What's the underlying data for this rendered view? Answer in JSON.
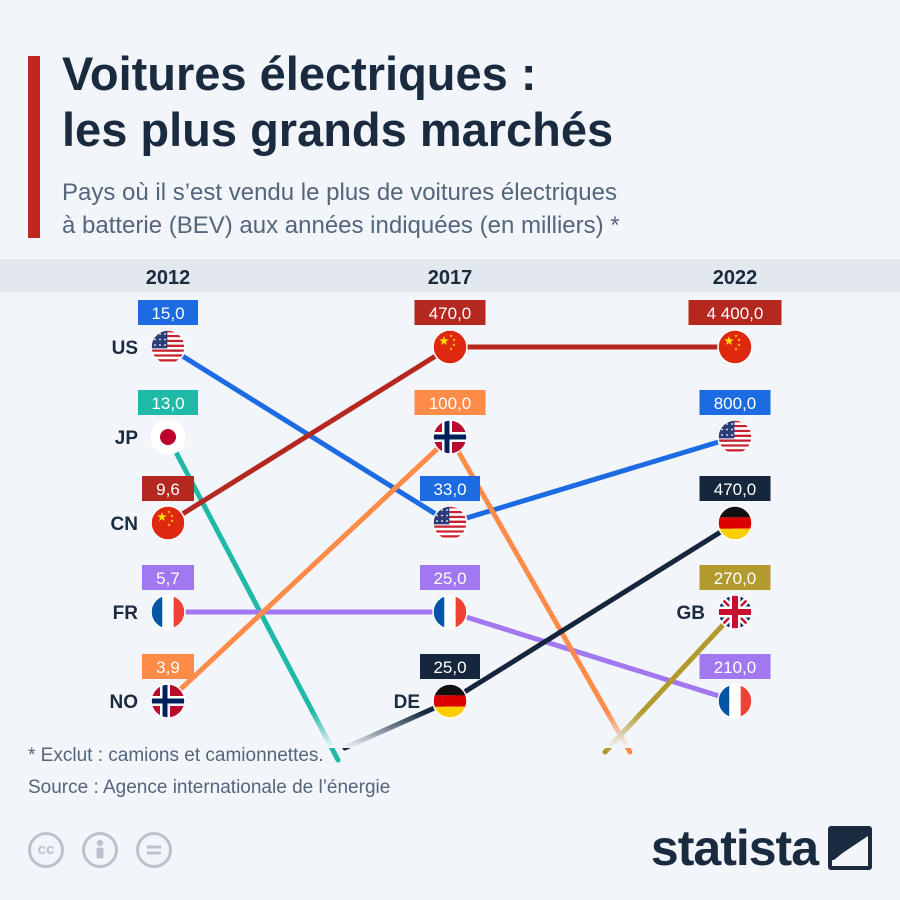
{
  "title": [
    "Voitures électriques :",
    "les plus grands marchés"
  ],
  "subtitle": [
    "Pays où il s’est vendu le plus de voitures électriques",
    "à batterie (BEV) aux années indiquées (en milliers) *"
  ],
  "footnote": [
    "* Exclut : camions et camionnettes.",
    "Source : Agence internationale de l’énergie"
  ],
  "brand": "statista",
  "license_icons": [
    "cc-icon",
    "person-icon",
    "equals-icon"
  ],
  "chart_data": {
    "type": "bump",
    "unit": "milliers",
    "years": [
      "2012",
      "2017",
      "2022"
    ],
    "series": [
      {
        "code": "US",
        "color": "#1c6be3",
        "flag": "us",
        "points": [
          {
            "year": "2012",
            "rank": 1,
            "value": "15,0"
          },
          {
            "year": "2017",
            "rank": 3,
            "value": "33,0"
          },
          {
            "year": "2022",
            "rank": 2,
            "value": "800,0"
          }
        ]
      },
      {
        "code": "JP",
        "color": "#1fbaa7",
        "flag": "jp",
        "points": [
          {
            "year": "2012",
            "rank": 2,
            "value": "13,0"
          }
        ]
      },
      {
        "code": "CN",
        "color": "#b5281f",
        "flag": "cn",
        "points": [
          {
            "year": "2012",
            "rank": 3,
            "value": "9,6"
          },
          {
            "year": "2017",
            "rank": 1,
            "value": "470,0"
          },
          {
            "year": "2022",
            "rank": 1,
            "value": "4 400,0"
          }
        ]
      },
      {
        "code": "FR",
        "color": "#a278f0",
        "flag": "fr",
        "points": [
          {
            "year": "2012",
            "rank": 4,
            "value": "5,7"
          },
          {
            "year": "2017",
            "rank": 4,
            "value": "25,0"
          },
          {
            "year": "2022",
            "rank": 5,
            "value": "210,0"
          }
        ]
      },
      {
        "code": "NO",
        "color": "#ff8b49",
        "flag": "no",
        "points": [
          {
            "year": "2012",
            "rank": 5,
            "value": "3,9"
          },
          {
            "year": "2017",
            "rank": 2,
            "value": "100,0"
          }
        ]
      },
      {
        "code": "DE",
        "color": "#16273d",
        "flag": "de",
        "points": [
          {
            "year": "2017",
            "rank": 5,
            "value": "25,0"
          },
          {
            "year": "2022",
            "rank": 3,
            "value": "470,0"
          }
        ]
      },
      {
        "code": "GB",
        "color": "#b39a2f",
        "flag": "gb",
        "points": [
          {
            "year": "2022",
            "rank": 4,
            "value": "270,0"
          }
        ]
      }
    ],
    "country_labels": [
      {
        "code": "US",
        "year": "2012"
      },
      {
        "code": "JP",
        "year": "2012"
      },
      {
        "code": "CN",
        "year": "2012"
      },
      {
        "code": "FR",
        "year": "2012"
      },
      {
        "code": "NO",
        "year": "2012"
      },
      {
        "code": "DE",
        "year": "2017"
      },
      {
        "code": "GB",
        "year": "2022"
      }
    ]
  }
}
